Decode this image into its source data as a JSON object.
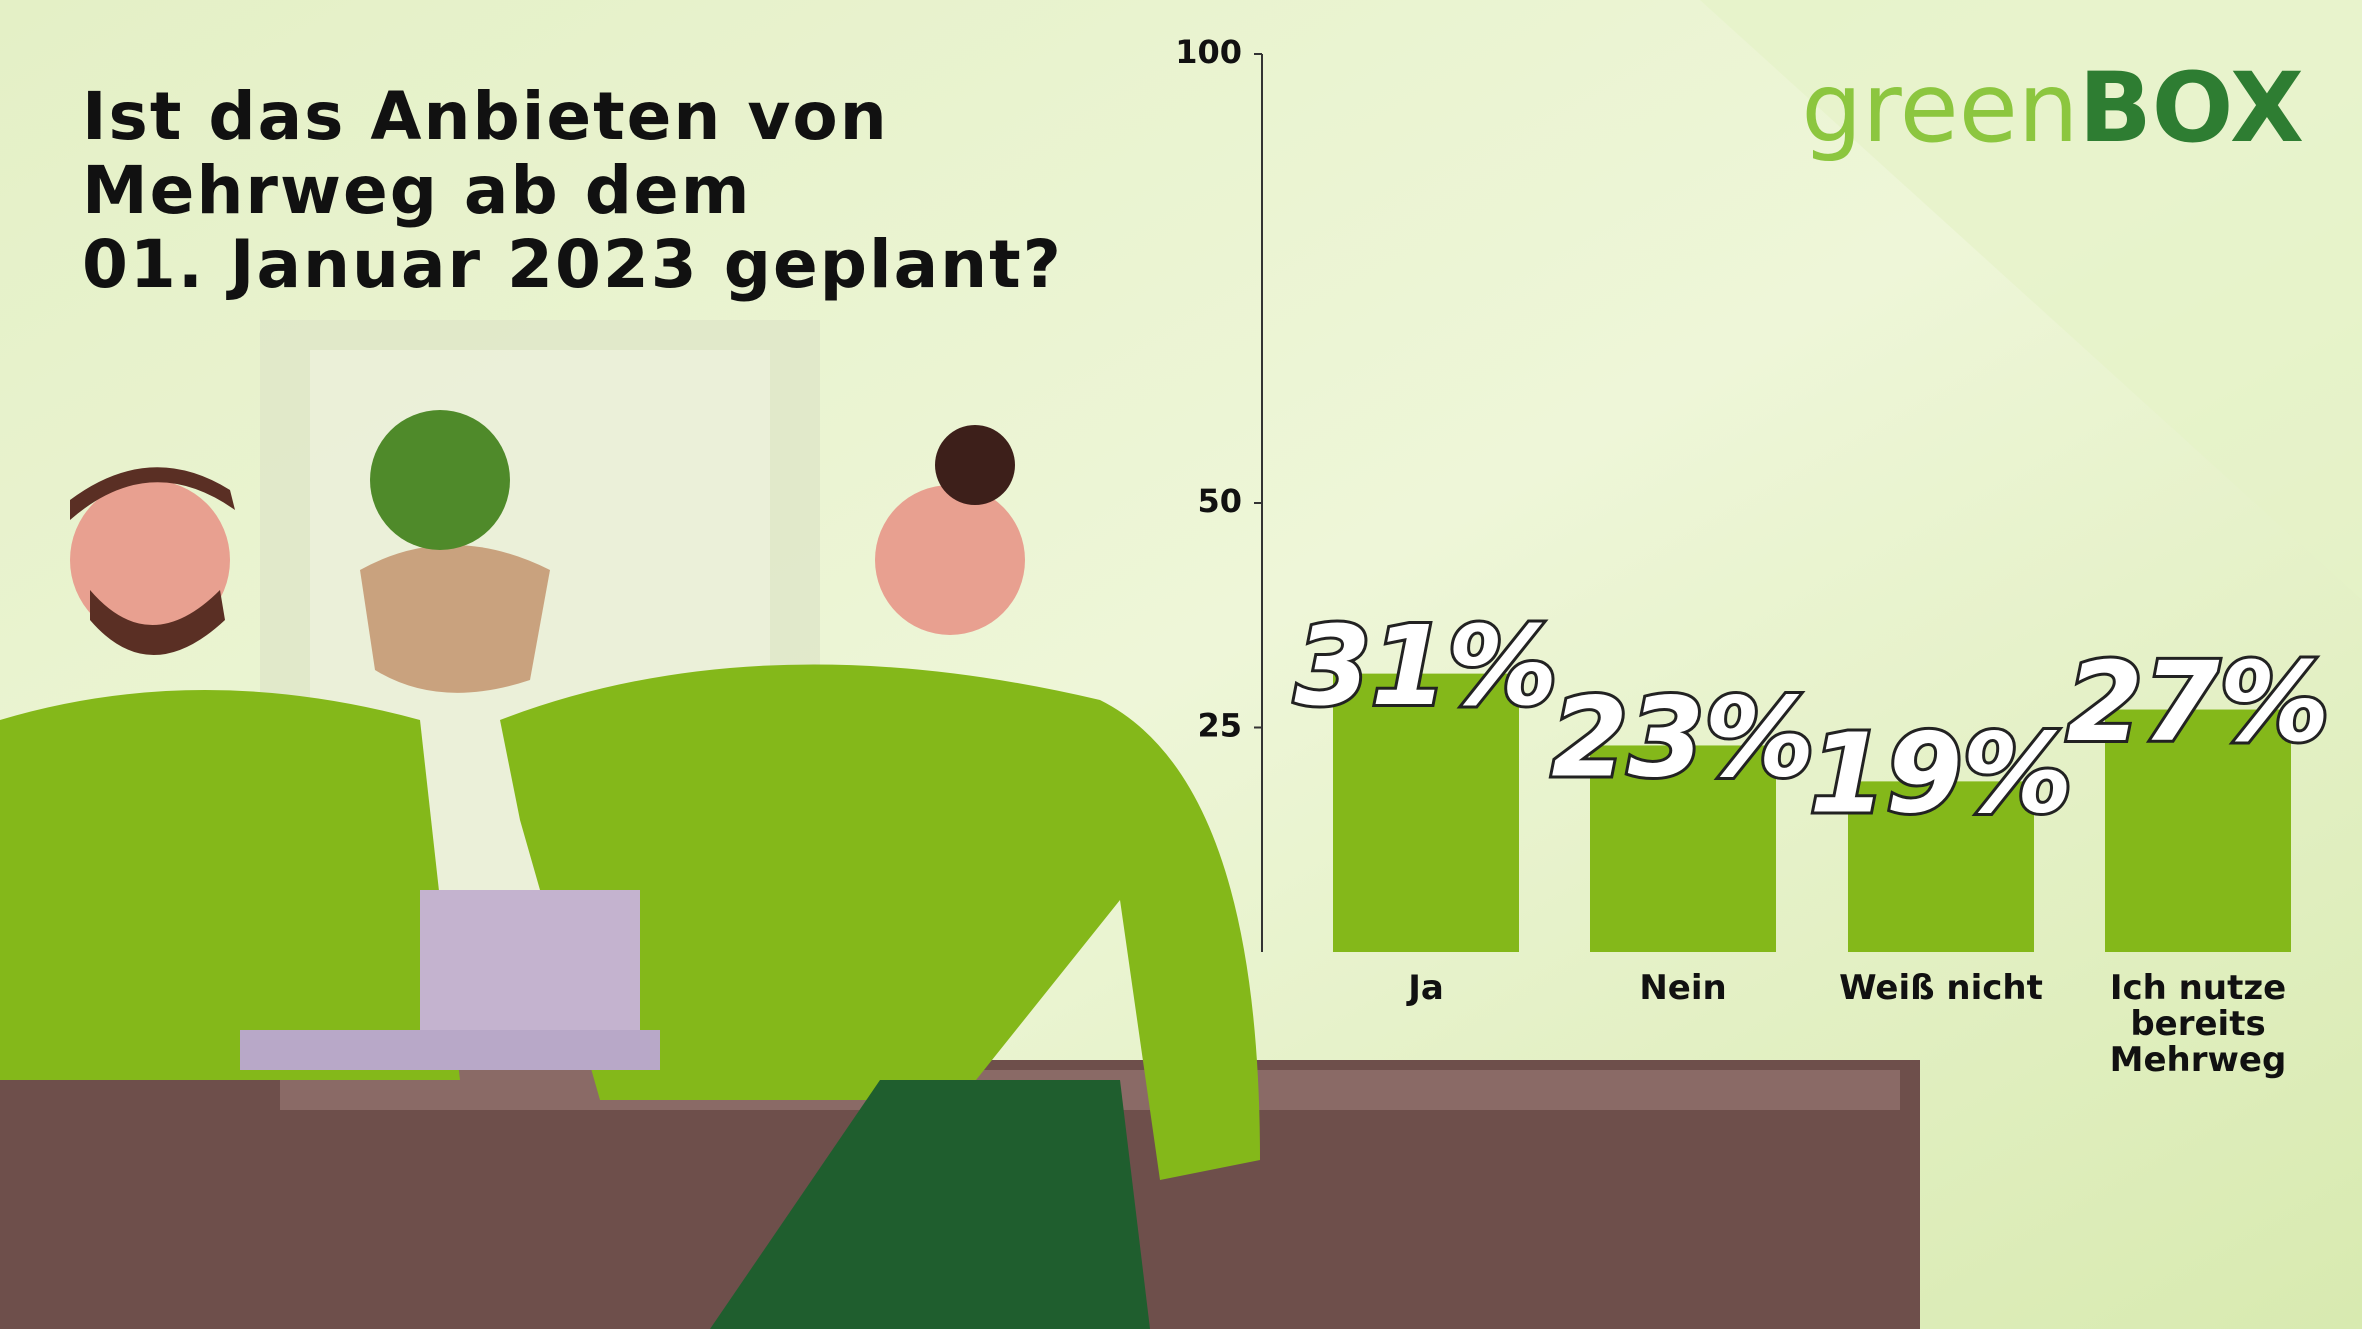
{
  "title_lines": [
    "Ist das Anbieten von",
    "Mehrweg ab dem",
    "01. Januar 2023 geplant?"
  ],
  "logo": {
    "part1": "green",
    "part2": "BOX"
  },
  "chart_data": {
    "type": "bar",
    "categories": [
      "Ja",
      "Nein",
      "Weiß nicht",
      "Ich nutze bereits Mehrweg"
    ],
    "values": [
      31,
      23,
      19,
      27
    ],
    "value_labels": [
      "31%",
      "23%",
      "19%",
      "27%"
    ],
    "color": "#84b81a",
    "ylim": [
      0,
      100
    ],
    "yticks": [
      25,
      50,
      100
    ]
  }
}
